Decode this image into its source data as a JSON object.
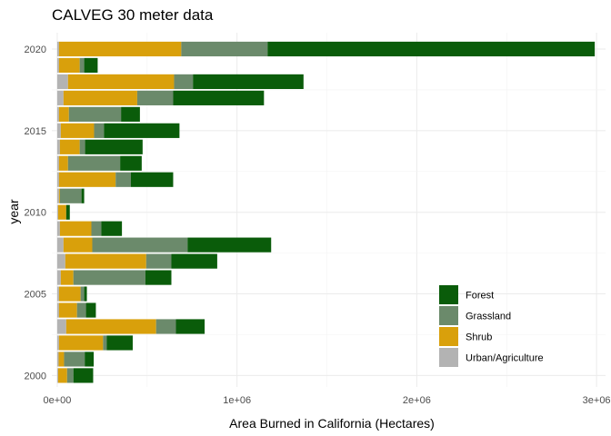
{
  "chart_data": {
    "type": "bar",
    "orientation": "horizontal",
    "stacked": true,
    "title": "CALVEG 30 meter data",
    "xlabel": "Area Burned in California (Hectares)",
    "ylabel": "year",
    "xlim": [
      -30000,
      3050000
    ],
    "ylim": [
      1999.3,
      2021.0
    ],
    "xticks": [
      0,
      1000000,
      2000000,
      3000000
    ],
    "xtick_labels": [
      "0e+00",
      "1e+06",
      "2e+06",
      "3e+06"
    ],
    "yticks": [
      2000,
      2005,
      2010,
      2015,
      2020
    ],
    "ytick_labels": [
      "2000",
      "2005",
      "2010",
      "2015",
      "2020"
    ],
    "grid": true,
    "legend_position": "bottom-right",
    "categories": [
      2000,
      2001,
      2002,
      2003,
      2004,
      2005,
      2006,
      2007,
      2008,
      2009,
      2010,
      2011,
      2012,
      2013,
      2014,
      2015,
      2016,
      2017,
      2018,
      2019,
      2020
    ],
    "series": [
      {
        "name": "Urban/Agriculture",
        "color": "#b3b3b3",
        "values": [
          5000,
          8000,
          10000,
          50000,
          10000,
          10000,
          20000,
          45000,
          35000,
          15000,
          5000,
          10000,
          10000,
          10000,
          15000,
          20000,
          10000,
          35000,
          60000,
          10000,
          10000
        ]
      },
      {
        "name": "Shrub",
        "color": "#d9a00b",
        "values": [
          50000,
          30000,
          245000,
          500000,
          100000,
          120000,
          70000,
          450000,
          160000,
          175000,
          45000,
          5000,
          315000,
          50000,
          110000,
          185000,
          55000,
          410000,
          590000,
          115000,
          680000
        ]
      },
      {
        "name": "Grassland",
        "color": "#6b8a6b",
        "values": [
          35000,
          115000,
          20000,
          110000,
          50000,
          20000,
          400000,
          140000,
          530000,
          55000,
          0,
          120000,
          85000,
          290000,
          30000,
          55000,
          290000,
          200000,
          105000,
          25000,
          480000
        ]
      },
      {
        "name": "Forest",
        "color": "#0a5c0a",
        "values": [
          110000,
          50000,
          145000,
          160000,
          55000,
          15000,
          145000,
          255000,
          465000,
          115000,
          20000,
          15000,
          235000,
          120000,
          320000,
          420000,
          105000,
          505000,
          615000,
          75000,
          1820000
        ]
      }
    ]
  }
}
